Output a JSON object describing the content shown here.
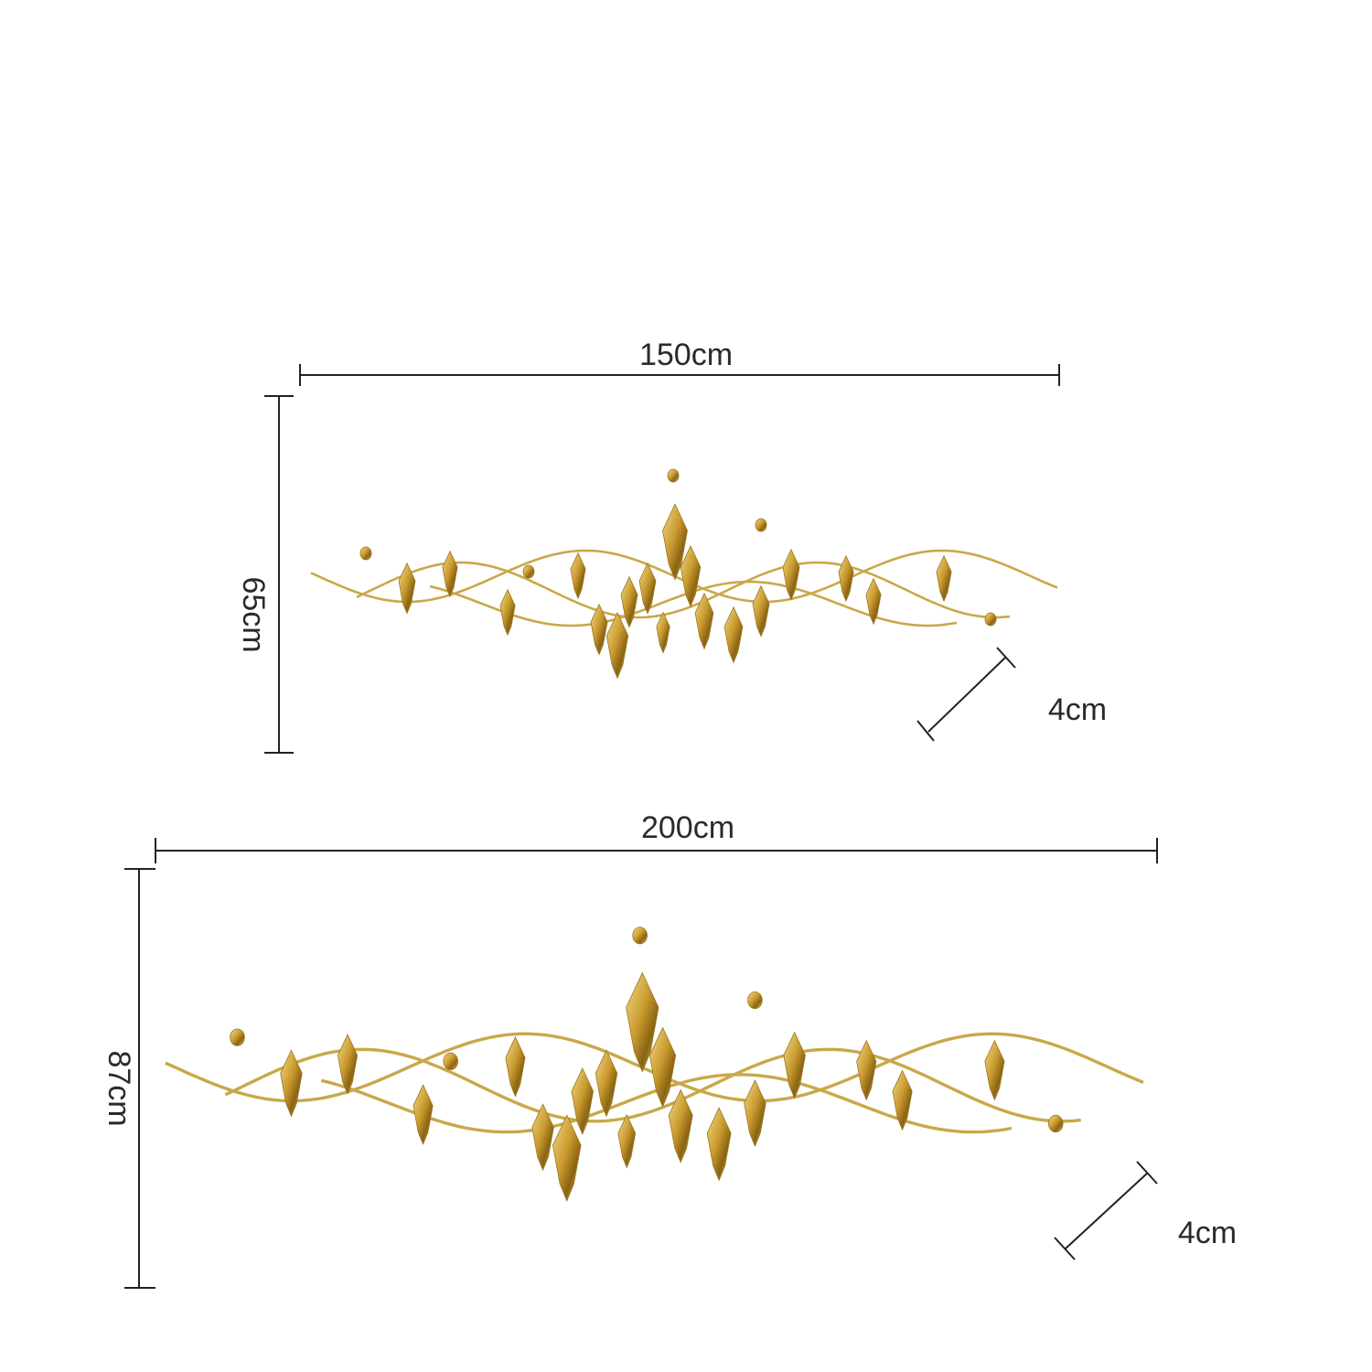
{
  "products": [
    {
      "width": "150cm",
      "height": "65cm",
      "depth": "4cm"
    },
    {
      "width": "200cm",
      "height": "87cm",
      "depth": "4cm"
    }
  ]
}
